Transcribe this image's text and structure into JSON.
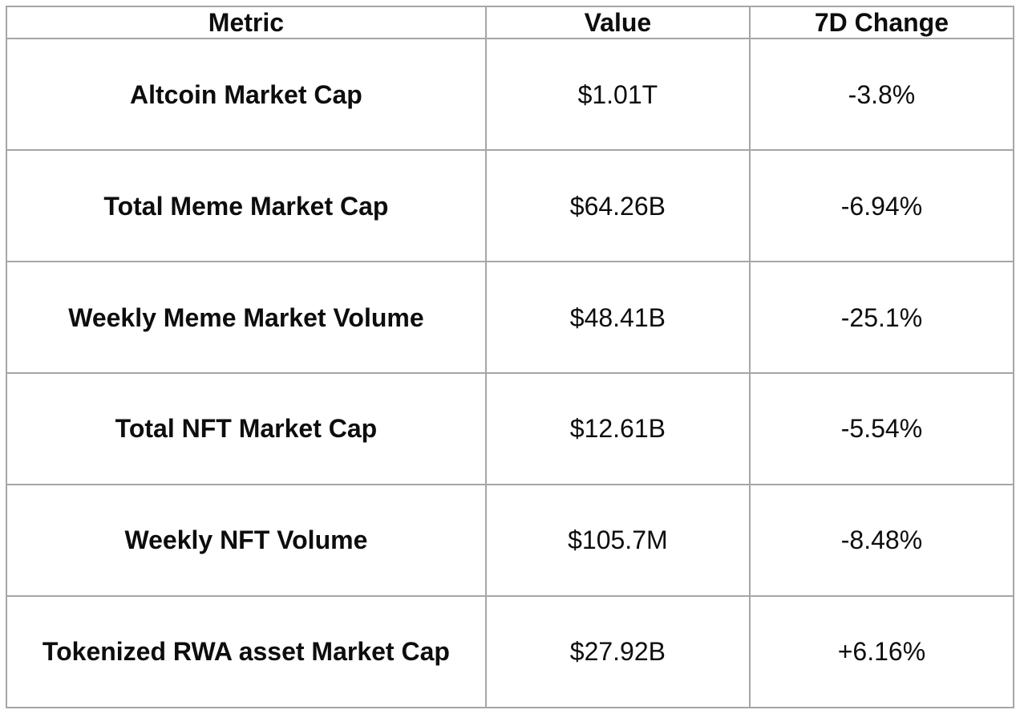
{
  "table": {
    "columns": [
      "Metric",
      "Value",
      "7D Change"
    ],
    "rows": [
      {
        "metric": "Altcoin Market Cap",
        "value": "$1.01T",
        "change": "-3.8%"
      },
      {
        "metric": "Total Meme Market Cap",
        "value": "$64.26B",
        "change": "-6.94%"
      },
      {
        "metric": "Weekly Meme Market Volume",
        "value": "$48.41B",
        "change": "-25.1%"
      },
      {
        "metric": "Total NFT Market Cap",
        "value": "$12.61B",
        "change": "-5.54%"
      },
      {
        "metric": "Weekly NFT Volume",
        "value": "$105.7M",
        "change": "-8.48%"
      },
      {
        "metric": "Tokenized RWA asset Market Cap",
        "value": "$27.92B",
        "change": "+6.16%"
      }
    ],
    "colors": {
      "border": "#a6a6a6",
      "text": "#0d0d0d",
      "background": "#ffffff"
    }
  },
  "chart_data": {
    "type": "table",
    "title": "",
    "columns": [
      "Metric",
      "Value",
      "7D Change"
    ],
    "rows": [
      [
        "Altcoin Market Cap",
        "$1.01T",
        "-3.8%"
      ],
      [
        "Total Meme Market Cap",
        "$64.26B",
        "-6.94%"
      ],
      [
        "Weekly Meme Market Volume",
        "$48.41B",
        "-25.1%"
      ],
      [
        "Total NFT Market Cap",
        "$12.61B",
        "-5.54%"
      ],
      [
        "Weekly NFT Volume",
        "$105.7M",
        "-8.48%"
      ],
      [
        "Tokenized RWA asset Market Cap",
        "$27.92B",
        "+6.16%"
      ]
    ],
    "values_numeric": {
      "altcoin_market_cap_usd": 1010000000000.0,
      "total_meme_market_cap_usd": 64260000000.0,
      "weekly_meme_market_volume_usd": 48410000000.0,
      "total_nft_market_cap_usd": 12610000000.0,
      "weekly_nft_volume_usd": 105700000.0,
      "tokenized_rwa_asset_market_cap_usd": 27920000000.0
    },
    "change_7d_percent": [
      -3.8,
      -6.94,
      -25.1,
      -5.54,
      -8.48,
      6.16
    ]
  }
}
